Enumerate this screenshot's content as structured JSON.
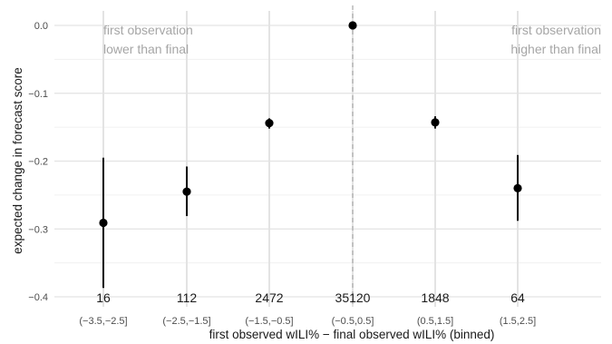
{
  "chart_data": {
    "type": "scatter",
    "title": "",
    "xlabel": "first observed wILI% − final observed wILI% (binned)",
    "ylabel": "expected change in forecast score",
    "ylim": [
      -0.4,
      0.0
    ],
    "y_ticks": [
      0.0,
      -0.1,
      -0.2,
      -0.3,
      -0.4
    ],
    "y_tick_labels": [
      "0.0",
      "−0.1",
      "−0.2",
      "−0.3",
      "−0.4"
    ],
    "grid": true,
    "categories": [
      "(−3.5,−2.5]",
      "(−2.5,−1.5]",
      "(−1.5,−0.5]",
      "(−0.5,0.5]",
      "(0.5,1.5]",
      "(1.5,2.5]"
    ],
    "points": [
      {
        "category": "(−3.5,−2.5]",
        "y": -0.291,
        "lower": -0.387,
        "upper": -0.195,
        "count": "16"
      },
      {
        "category": "(−2.5,−1.5]",
        "y": -0.245,
        "lower": -0.281,
        "upper": -0.208,
        "count": "112"
      },
      {
        "category": "(−1.5,−0.5]",
        "y": -0.144,
        "lower": -0.152,
        "upper": -0.137,
        "count": "2472"
      },
      {
        "category": "(−0.5,0.5]",
        "y": 0.0,
        "lower": -0.003,
        "upper": 0.003,
        "count": "35120"
      },
      {
        "category": "(0.5,1.5]",
        "y": -0.143,
        "lower": -0.152,
        "upper": -0.134,
        "count": "1848"
      },
      {
        "category": "(1.5,2.5]",
        "y": -0.24,
        "lower": -0.288,
        "upper": -0.191,
        "count": "64"
      }
    ],
    "reference_line": {
      "category": "(−0.5,0.5]",
      "style": "dashed"
    },
    "annotations": {
      "left": [
        "first observation",
        "lower than final"
      ],
      "right": [
        "first observation",
        "higher than final"
      ]
    }
  }
}
